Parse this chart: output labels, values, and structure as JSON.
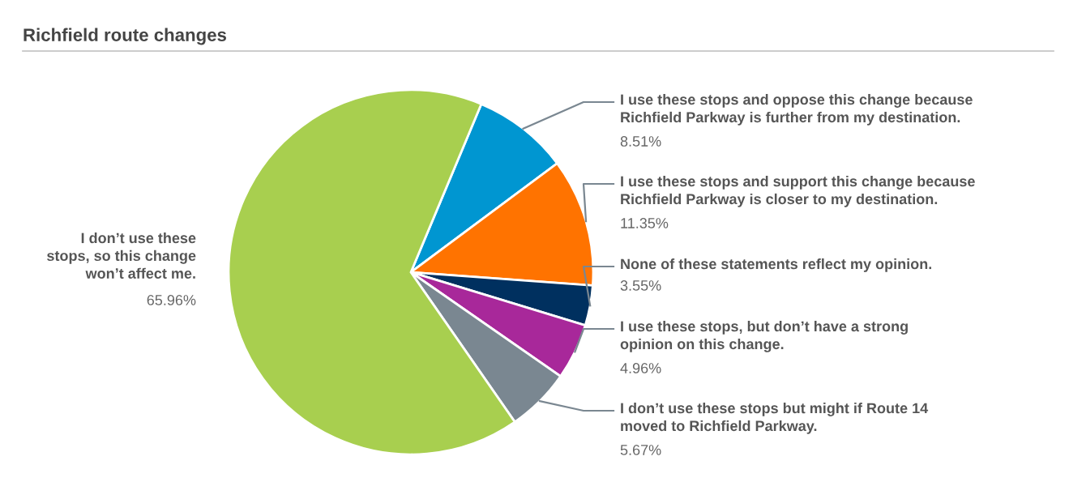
{
  "chart_data": {
    "type": "pie",
    "title": "Richfield route changes",
    "categories": [
      "I use these stops and oppose this change because\nRichfield Parkway is further from my destination.",
      "I use these stops and support this change because\nRichfield Parkway is closer to my destination.",
      "None of these statements reflect my opinion.",
      "I use these stops, but don’t have a strong\nopinion on this change.",
      "I don’t use these stops but might if Route 14\nmoved to Richfield Parkway.",
      "I don’t use these\nstops, so this change\nwon’t affect me."
    ],
    "values": [
      8.51,
      11.35,
      3.55,
      4.96,
      5.67,
      65.96
    ],
    "colors": [
      "#0096d1",
      "#ff7300",
      "#00305f",
      "#a8289a",
      "#7a8791",
      "#a8cf4f"
    ],
    "value_labels": [
      "8.51%",
      "11.35%",
      "3.55%",
      "4.96%",
      "5.67%",
      "65.96%"
    ]
  }
}
